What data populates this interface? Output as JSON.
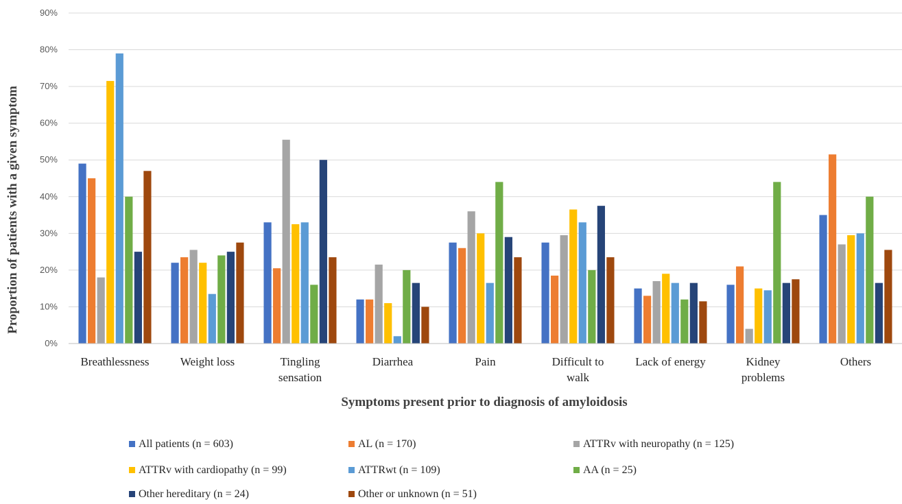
{
  "chart_data": {
    "type": "bar",
    "title": "",
    "xlabel": "Symptoms  present prior  to diagnosis of amyloidosis",
    "ylabel": "Proportion  of patients with  a given symptom",
    "ylim": [
      0,
      0.9
    ],
    "yticks": [
      "0%",
      "10%",
      "20%",
      "30%",
      "40%",
      "50%",
      "60%",
      "70%",
      "80%",
      "90%"
    ],
    "categories": [
      [
        "Breathlessness"
      ],
      [
        "Weight loss"
      ],
      [
        "Tingling",
        "sensation"
      ],
      [
        "Diarrhea"
      ],
      [
        "Pain"
      ],
      [
        "Difficult to",
        "walk"
      ],
      [
        "Lack of energy"
      ],
      [
        "Kidney",
        "problems"
      ],
      [
        "Others"
      ]
    ],
    "grid": true,
    "legend_position": "bottom",
    "series": [
      {
        "name": "All patients (n = 603)",
        "color": "#4472C4",
        "values": [
          0.49,
          0.22,
          0.33,
          0.12,
          0.275,
          0.275,
          0.15,
          0.16,
          0.35
        ]
      },
      {
        "name": "AL (n = 170)",
        "color": "#ED7D31",
        "values": [
          0.45,
          0.235,
          0.205,
          0.12,
          0.26,
          0.185,
          0.13,
          0.21,
          0.515
        ]
      },
      {
        "name": "ATTRv with neuropathy (n = 125)",
        "color": "#A5A5A5",
        "values": [
          0.18,
          0.255,
          0.555,
          0.215,
          0.36,
          0.295,
          0.17,
          0.04,
          0.27
        ]
      },
      {
        "name": "ATTRv with cardiopathy (n = 99)",
        "color": "#FFC000",
        "values": [
          0.715,
          0.22,
          0.325,
          0.11,
          0.3,
          0.365,
          0.19,
          0.15,
          0.295
        ]
      },
      {
        "name": "ATTRwt (n = 109)",
        "color": "#5B9BD5",
        "values": [
          0.79,
          0.135,
          0.33,
          0.02,
          0.165,
          0.33,
          0.165,
          0.145,
          0.3
        ]
      },
      {
        "name": "AA (n = 25)",
        "color": "#70AD47",
        "values": [
          0.4,
          0.24,
          0.16,
          0.2,
          0.44,
          0.2,
          0.12,
          0.44,
          0.4
        ]
      },
      {
        "name": "Other hereditary (n = 24)",
        "color": "#264478",
        "values": [
          0.25,
          0.25,
          0.5,
          0.165,
          0.29,
          0.375,
          0.165,
          0.165,
          0.165
        ]
      },
      {
        "name": "Other or unknown (n =  51)",
        "color": "#9E480E",
        "values": [
          0.47,
          0.275,
          0.235,
          0.1,
          0.235,
          0.235,
          0.115,
          0.175,
          0.255
        ]
      }
    ]
  }
}
